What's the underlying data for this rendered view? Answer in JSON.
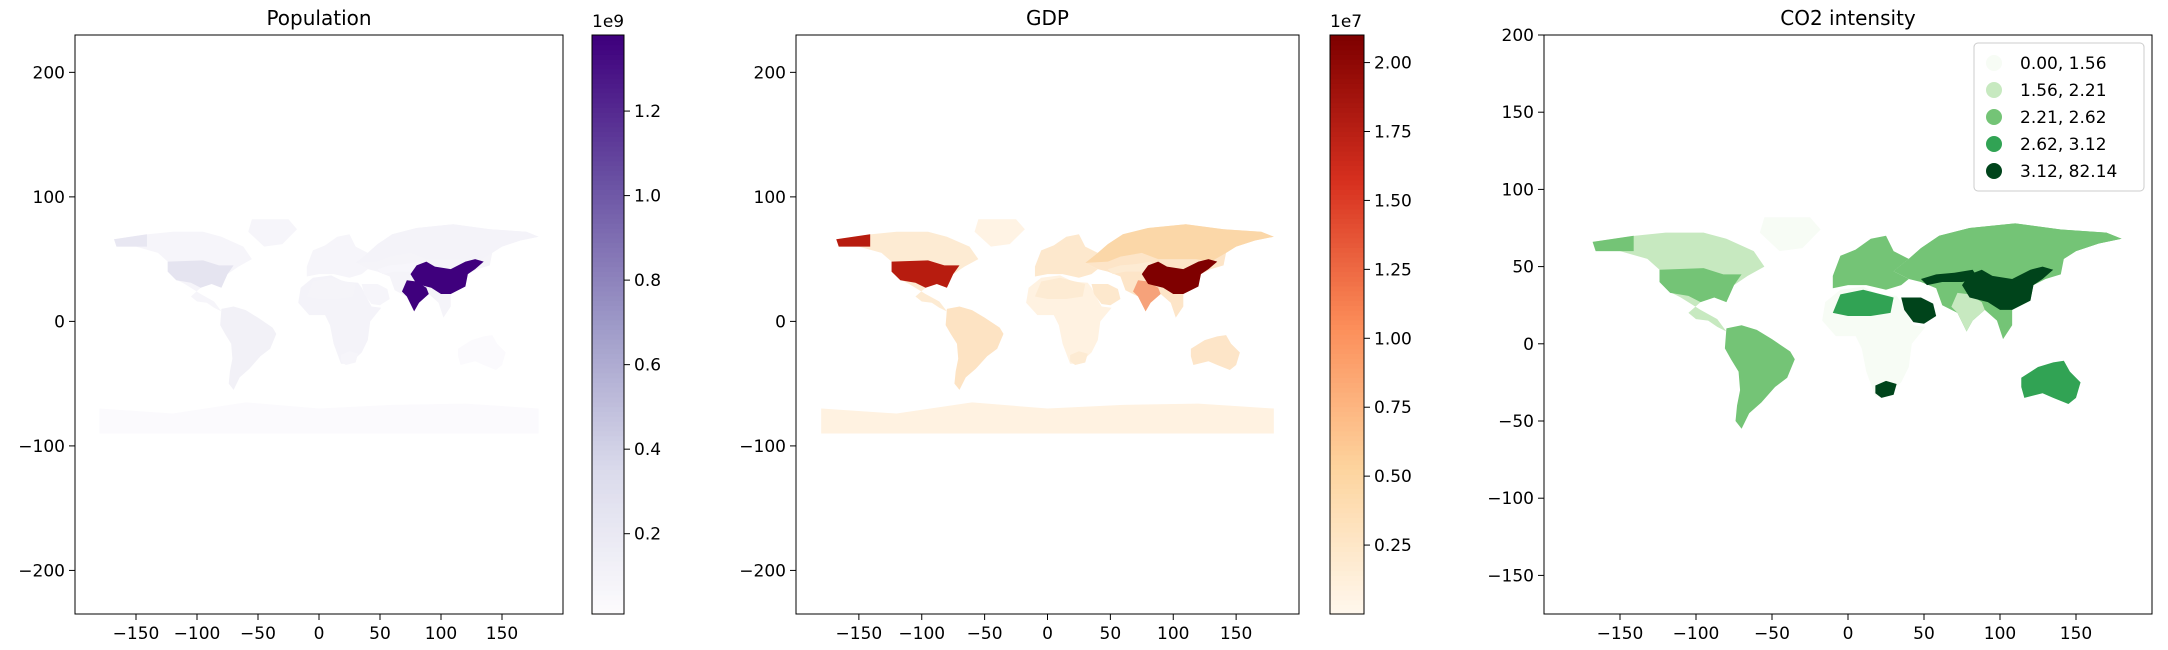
{
  "chart_data": [
    {
      "type": "choropleth",
      "title": "Population",
      "colormap": "Purples",
      "xlim": [
        -200,
        200
      ],
      "ylim": [
        -235,
        230
      ],
      "xticks": [
        -150,
        -100,
        -50,
        0,
        50,
        100,
        150
      ],
      "yticks": [
        -200,
        -100,
        0,
        100,
        200
      ],
      "colorbar": {
        "ticks": [
          0.2,
          0.4,
          0.6,
          0.8,
          1.0,
          1.2
        ],
        "range": [
          0.01,
          1.38
        ],
        "exponent": "1e9",
        "colors": [
          "#fcfbfd",
          "#dadaeb",
          "#9e9ac8",
          "#6a51a3",
          "#3f007d"
        ]
      },
      "highlights": [
        {
          "region": "China",
          "value": 1.38
        },
        {
          "region": "India",
          "value": 1.3
        }
      ]
    },
    {
      "type": "choropleth",
      "title": "GDP",
      "colormap": "OrRd",
      "xlim": [
        -200,
        200
      ],
      "ylim": [
        -235,
        230
      ],
      "xticks": [
        -150,
        -100,
        -50,
        0,
        50,
        100,
        150
      ],
      "yticks": [
        -200,
        -100,
        0,
        100,
        200
      ],
      "colorbar": {
        "ticks": [
          0.25,
          0.5,
          0.75,
          1.0,
          1.25,
          1.5,
          1.75,
          2.0
        ],
        "range": [
          0.0,
          2.1
        ],
        "exponent": "1e7",
        "colors": [
          "#fff7ec",
          "#fdd49e",
          "#fc8d59",
          "#d7301f",
          "#7f0000"
        ]
      },
      "highlights": [
        {
          "region": "United States",
          "value": 1.9
        },
        {
          "region": "China",
          "value": 2.1
        },
        {
          "region": "India",
          "value": 0.9
        }
      ]
    },
    {
      "type": "choropleth",
      "title": "CO2 intensity",
      "colormap": "Greens",
      "xlim": [
        -200,
        200
      ],
      "ylim": [
        -175,
        200
      ],
      "xticks": [
        -150,
        -100,
        -50,
        0,
        50,
        100,
        150
      ],
      "yticks": [
        -150,
        -100,
        -50,
        0,
        50,
        100,
        150,
        200
      ],
      "legend": {
        "placement": "top-right",
        "entries": [
          {
            "label": "0.00,  1.56",
            "color": "#f7fcf5"
          },
          {
            "label": "1.56,  2.21",
            "color": "#c7e9c0"
          },
          {
            "label": "2.21,  2.62",
            "color": "#74c476"
          },
          {
            "label": "2.62,  3.12",
            "color": "#31a354"
          },
          {
            "label": "3.12, 82.14",
            "color": "#00441b"
          }
        ]
      }
    }
  ]
}
